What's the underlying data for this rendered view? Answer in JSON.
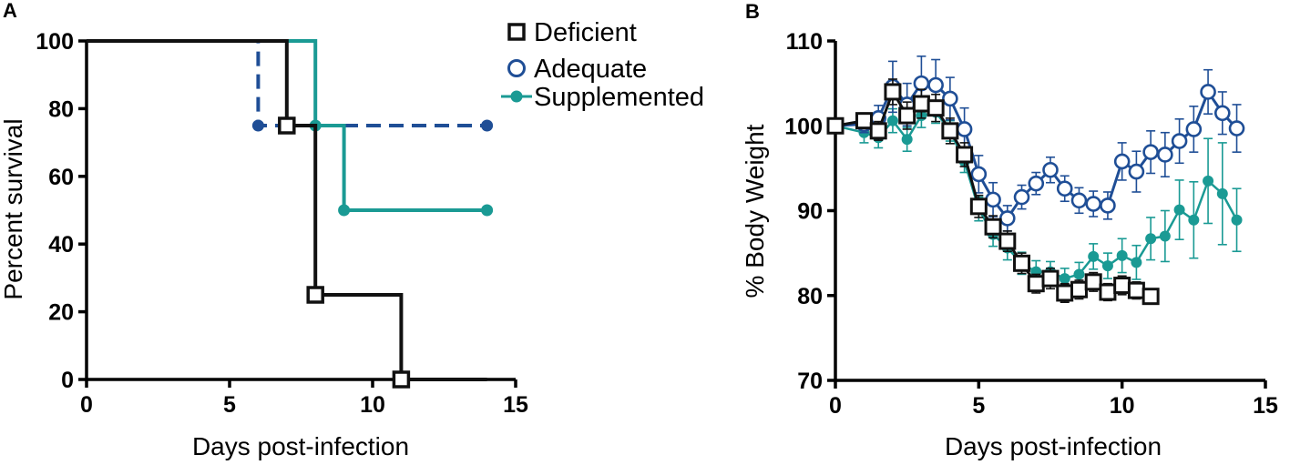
{
  "colors": {
    "deficient": "#111111",
    "adequate": "#1f4e96",
    "supplemented": "#1a9a94",
    "axis": "#000000",
    "marker_fill_white": "#ffffff"
  },
  "chart_data": [
    {
      "panel": "A",
      "type": "line",
      "subtype": "kaplan-meier-step",
      "xlabel": "Days post-infection",
      "ylabel": "Percent survival",
      "xlim": [
        0,
        15
      ],
      "ylim": [
        0,
        100
      ],
      "xticks": [
        0,
        5,
        10,
        15
      ],
      "yticks": [
        0,
        20,
        40,
        60,
        80,
        100
      ],
      "legend": {
        "placement": "top-right",
        "entries": [
          "Deficient",
          "Adequate",
          "Supplemented"
        ]
      },
      "series": [
        {
          "name": "Deficient",
          "style": "solid",
          "marker": "open-square",
          "steps": [
            [
              0,
              100
            ],
            [
              7,
              75
            ],
            [
              8,
              25
            ],
            [
              11,
              0
            ],
            [
              14,
              0
            ]
          ],
          "events": [
            [
              7,
              75
            ],
            [
              8,
              25
            ],
            [
              11,
              0
            ]
          ]
        },
        {
          "name": "Adequate",
          "style": "dashed",
          "marker": "filled-circle",
          "steps": [
            [
              0,
              100
            ],
            [
              6,
              75
            ],
            [
              14,
              75
            ]
          ],
          "events": [
            [
              6,
              75
            ],
            [
              14,
              75
            ]
          ]
        },
        {
          "name": "Supplemented",
          "style": "solid",
          "marker": "filled-circle",
          "steps": [
            [
              0,
              100
            ],
            [
              8,
              75
            ],
            [
              9,
              50
            ],
            [
              14,
              50
            ]
          ],
          "events": [
            [
              8,
              75
            ],
            [
              9,
              50
            ],
            [
              14,
              50
            ]
          ]
        }
      ]
    },
    {
      "panel": "B",
      "type": "line",
      "subtype": "mean-with-error-bars",
      "xlabel": "Days post-infection",
      "ylabel": "% Body Weight",
      "xlim": [
        0,
        15
      ],
      "ylim": [
        70,
        110
      ],
      "xticks": [
        0,
        5,
        10,
        15
      ],
      "yticks": [
        70,
        80,
        90,
        100,
        110
      ],
      "series": [
        {
          "name": "Supplemented",
          "marker": "filled-circle",
          "x": [
            0,
            1,
            1.5,
            2,
            2.5,
            3,
            3.5,
            4,
            4.5,
            5,
            5.5,
            6,
            6.5,
            7,
            7.5,
            8,
            8.5,
            9,
            9.5,
            10,
            10.5,
            11,
            11.5,
            12,
            12.5,
            13,
            13.5,
            14
          ],
          "y": [
            100,
            99.2,
            98.6,
            100.6,
            98.4,
            101.2,
            101.6,
            99.4,
            95.8,
            90.2,
            87.2,
            85.6,
            83.8,
            82.8,
            82.8,
            82.0,
            82.5,
            84.6,
            83.5,
            84.7,
            83.9,
            86.7,
            87,
            90.1,
            88.9,
            93.5,
            92,
            88.9
          ],
          "err": [
            0,
            1.2,
            1.2,
            1.4,
            1.4,
            1.4,
            1.3,
            1.2,
            1.3,
            1.4,
            1.4,
            1.4,
            1.3,
            1.3,
            1.2,
            1.2,
            1.4,
            1.5,
            1.5,
            2.0,
            2.0,
            2.5,
            3.0,
            3.5,
            4.5,
            5.0,
            6.0,
            3.7
          ]
        },
        {
          "name": "Adequate",
          "marker": "open-circle",
          "x": [
            0,
            1,
            1.5,
            2,
            2.5,
            3,
            3.5,
            4,
            4.5,
            5,
            5.5,
            6,
            6.5,
            7,
            7.5,
            8,
            8.5,
            9,
            9.5,
            10,
            10.5,
            11,
            11.5,
            12,
            12.5,
            13,
            13.5,
            14
          ],
          "y": [
            100,
            100.2,
            100.9,
            104.6,
            102.5,
            105,
            104.8,
            103.2,
            99.6,
            94.3,
            91.3,
            89.1,
            91.6,
            93.2,
            94.8,
            92.6,
            91.2,
            90.8,
            90.6,
            95.8,
            94.6,
            96.9,
            96.6,
            98.2,
            99.6,
            104,
            101.5,
            99.7
          ],
          "err": [
            0,
            1.0,
            1.5,
            3.0,
            2.5,
            3.2,
            3.0,
            2.5,
            2.5,
            2.2,
            2.0,
            1.5,
            1.4,
            1.3,
            1.5,
            1.5,
            1.5,
            1.5,
            1.6,
            2.2,
            2.4,
            2.5,
            2.6,
            2.6,
            2.7,
            2.6,
            2.5,
            2.8
          ]
        },
        {
          "name": "Deficient",
          "marker": "open-square",
          "x": [
            0,
            1,
            1.5,
            2,
            2.5,
            3,
            3.5,
            4,
            4.5,
            5,
            5.5,
            6,
            6.5,
            7,
            7.5,
            8,
            8.5,
            9,
            9.5,
            10,
            10.5,
            11
          ],
          "y": [
            100,
            100.6,
            99.4,
            104,
            101.2,
            102.6,
            102.1,
            99.4,
            96.6,
            90.5,
            88.1,
            86.4,
            83.8,
            81.4,
            82,
            80.3,
            80.7,
            81.6,
            80.4,
            81.2,
            80.6,
            79.9
          ],
          "err": [
            0,
            0.9,
            1.1,
            1.5,
            1.6,
            1.7,
            1.6,
            1.5,
            1.4,
            1.3,
            1.3,
            1.2,
            1.2,
            1.1,
            1.2,
            1.1,
            1.1,
            1.1,
            1.0,
            1.1,
            1.0,
            0.9
          ]
        }
      ]
    }
  ]
}
